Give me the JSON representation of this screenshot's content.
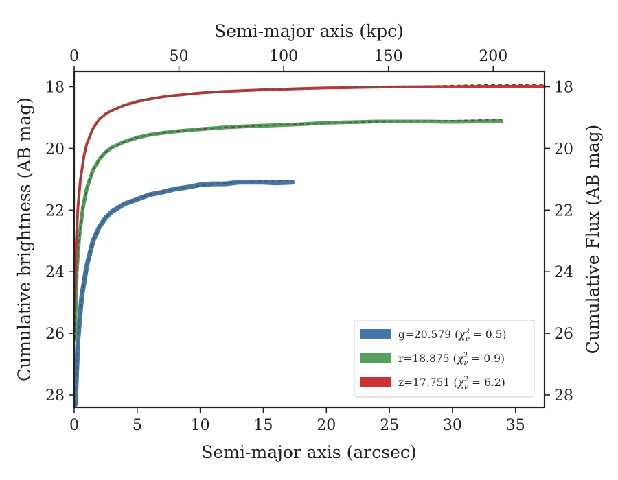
{
  "chart_data": {
    "type": "line",
    "title": "",
    "xlabel": "Semi-major axis (arcsec)",
    "ylabel": "Cumulative brightness (AB mag)",
    "x2label": "Semi-major axis (kpc)",
    "y2label": "Cumulative Flux (AB mag)",
    "xlim": [
      0,
      37.3
    ],
    "ylim": [
      28.4,
      17.5
    ],
    "x2lim": [
      0,
      224.5
    ],
    "y_inverted": true,
    "xticks": [
      0,
      5,
      10,
      15,
      20,
      25,
      30,
      35
    ],
    "yticks": [
      18,
      20,
      22,
      24,
      26,
      28
    ],
    "x2ticks": [
      0,
      50,
      100,
      150,
      200
    ],
    "grid": false,
    "legend": {
      "placement": "lower-right"
    },
    "model_line": {
      "color": "#555555",
      "dash": "dashed"
    },
    "series": [
      {
        "name": "g=20.579 (χ²ν = 0.5)",
        "legend_label": {
          "band": "g",
          "mag": "20.579",
          "chi2": "0.5"
        },
        "color": "#4477aa",
        "x": [
          0.1,
          0.3,
          0.6,
          1.0,
          1.5,
          2.0,
          2.5,
          3.0,
          4.0,
          5.0,
          6.0,
          7.0,
          8.0,
          9.0,
          10.0,
          11.0,
          12.0,
          13.0,
          14.0,
          15.0,
          16.0,
          17.3
        ],
        "y": [
          28.3,
          26.2,
          24.8,
          23.8,
          23.0,
          22.55,
          22.25,
          22.05,
          21.8,
          21.65,
          21.5,
          21.42,
          21.32,
          21.26,
          21.18,
          21.15,
          21.15,
          21.1,
          21.1,
          21.1,
          21.12,
          21.1
        ],
        "model_y": [
          28.3,
          26.2,
          24.8,
          23.8,
          23.0,
          22.55,
          22.25,
          22.05,
          21.8,
          21.65,
          21.5,
          21.42,
          21.32,
          21.26,
          21.2,
          21.16,
          21.13,
          21.1,
          21.08,
          21.07,
          21.06,
          21.04
        ]
      },
      {
        "name": "r=18.875 (χ²ν = 0.9)",
        "legend_label": {
          "band": "r",
          "mag": "18.875",
          "chi2": "0.9"
        },
        "color": "#55a05a",
        "x": [
          0.05,
          0.2,
          0.4,
          0.7,
          1.0,
          1.5,
          2.0,
          2.5,
          3.0,
          4.0,
          5.0,
          6.0,
          7.0,
          8.0,
          10.0,
          12.0,
          14.0,
          16.0,
          18.0,
          20.0,
          22.0,
          24.0,
          26.0,
          28.0,
          30.0,
          32.0,
          33.9
        ],
        "y": [
          26.2,
          24.0,
          22.9,
          21.9,
          21.3,
          20.7,
          20.35,
          20.12,
          19.97,
          19.78,
          19.65,
          19.56,
          19.5,
          19.45,
          19.38,
          19.32,
          19.28,
          19.25,
          19.22,
          19.17,
          19.15,
          19.13,
          19.13,
          19.13,
          19.14,
          19.13,
          19.12
        ],
        "model_y": [
          26.2,
          24.0,
          22.9,
          21.9,
          21.3,
          20.7,
          20.35,
          20.12,
          19.97,
          19.78,
          19.65,
          19.56,
          19.5,
          19.45,
          19.38,
          19.32,
          19.28,
          19.24,
          19.21,
          19.18,
          19.16,
          19.14,
          19.12,
          19.11,
          19.1,
          19.08,
          19.07
        ]
      },
      {
        "name": "z=17.751 (χ²ν = 6.2)",
        "legend_label": {
          "band": "z",
          "mag": "17.751",
          "chi2": "6.2"
        },
        "color": "#cc3333",
        "x": [
          0.05,
          0.15,
          0.3,
          0.5,
          0.8,
          1.0,
          1.5,
          2.0,
          2.5,
          3.0,
          4.0,
          5.0,
          6.0,
          7.0,
          8.0,
          10.0,
          12.0,
          15.0,
          18.0,
          20.0,
          22.0,
          25.0,
          28.0,
          30.0,
          33.0,
          35.0,
          37.3
        ],
        "y": [
          25.2,
          23.2,
          21.9,
          21.0,
          20.2,
          19.85,
          19.35,
          19.05,
          18.88,
          18.77,
          18.6,
          18.48,
          18.4,
          18.33,
          18.28,
          18.2,
          18.15,
          18.1,
          18.06,
          18.04,
          18.03,
          18.01,
          18.0,
          18.0,
          17.99,
          17.99,
          17.99
        ],
        "model_y": [
          25.2,
          23.2,
          21.9,
          21.0,
          20.2,
          19.85,
          19.35,
          19.05,
          18.88,
          18.77,
          18.6,
          18.48,
          18.4,
          18.33,
          18.28,
          18.2,
          18.15,
          18.1,
          18.06,
          18.04,
          18.02,
          18.0,
          17.98,
          17.96,
          17.94,
          17.93,
          17.92
        ]
      }
    ]
  }
}
